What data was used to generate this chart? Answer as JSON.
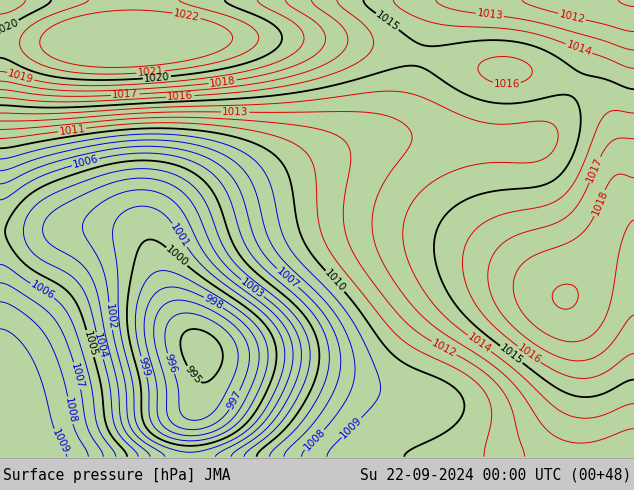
{
  "title_left": "Surface pressure [hPa] JMA",
  "title_right": "Su 22-09-2024 00:00 UTC (00+48)",
  "bg_color": "#c8c8c8",
  "land_color": "#b8d4a0",
  "ocean_color": "#c8c8c8",
  "bottom_bar_color": "#c8c8c8",
  "bottom_bar_height": 0.068,
  "title_fontsize": 10.5,
  "title_color": "#000000",
  "blue_color": "#0000dd",
  "red_color": "#dd0000",
  "black_color": "#000000",
  "label_fontsize": 7.5,
  "contour_lw_thin": 0.7,
  "contour_lw_thick": 1.3
}
